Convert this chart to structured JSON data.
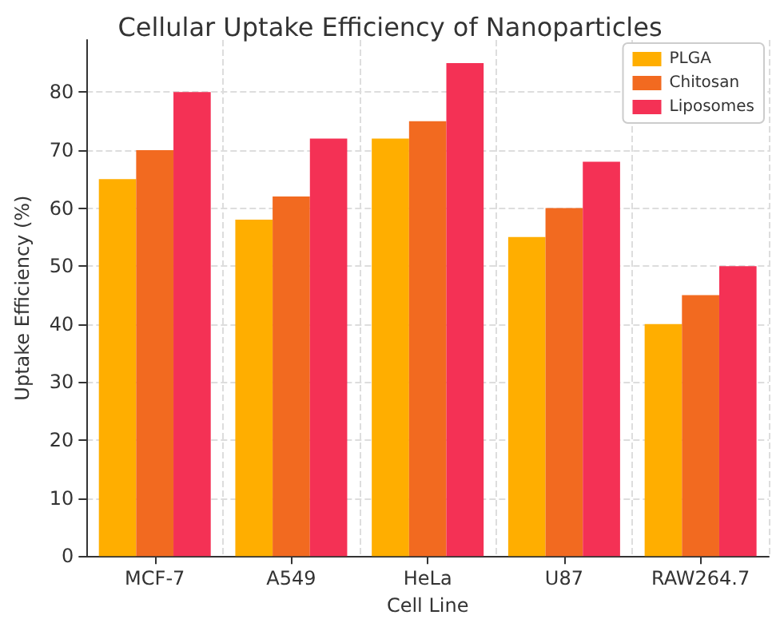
{
  "chart_data": {
    "type": "bar",
    "title": "Cellular Uptake Efficiency of Nanoparticles",
    "xlabel": "Cell Line",
    "ylabel": "Uptake Efficiency (%)",
    "categories": [
      "MCF-7",
      "A549",
      "HeLa",
      "U87",
      "RAW264.7"
    ],
    "series": [
      {
        "name": "PLGA",
        "color": "#ffae00",
        "values": [
          65,
          58,
          72,
          55,
          40
        ]
      },
      {
        "name": "Chitosan",
        "color": "#f26a20",
        "values": [
          70,
          62,
          75,
          60,
          45
        ]
      },
      {
        "name": "Liposomes",
        "color": "#f43155",
        "values": [
          80,
          72,
          85,
          68,
          50
        ]
      }
    ],
    "ylim": [
      0,
      89
    ],
    "yticks": [
      0,
      10,
      20,
      30,
      40,
      50,
      60,
      70,
      80
    ],
    "grid": true,
    "legend": "top right"
  }
}
